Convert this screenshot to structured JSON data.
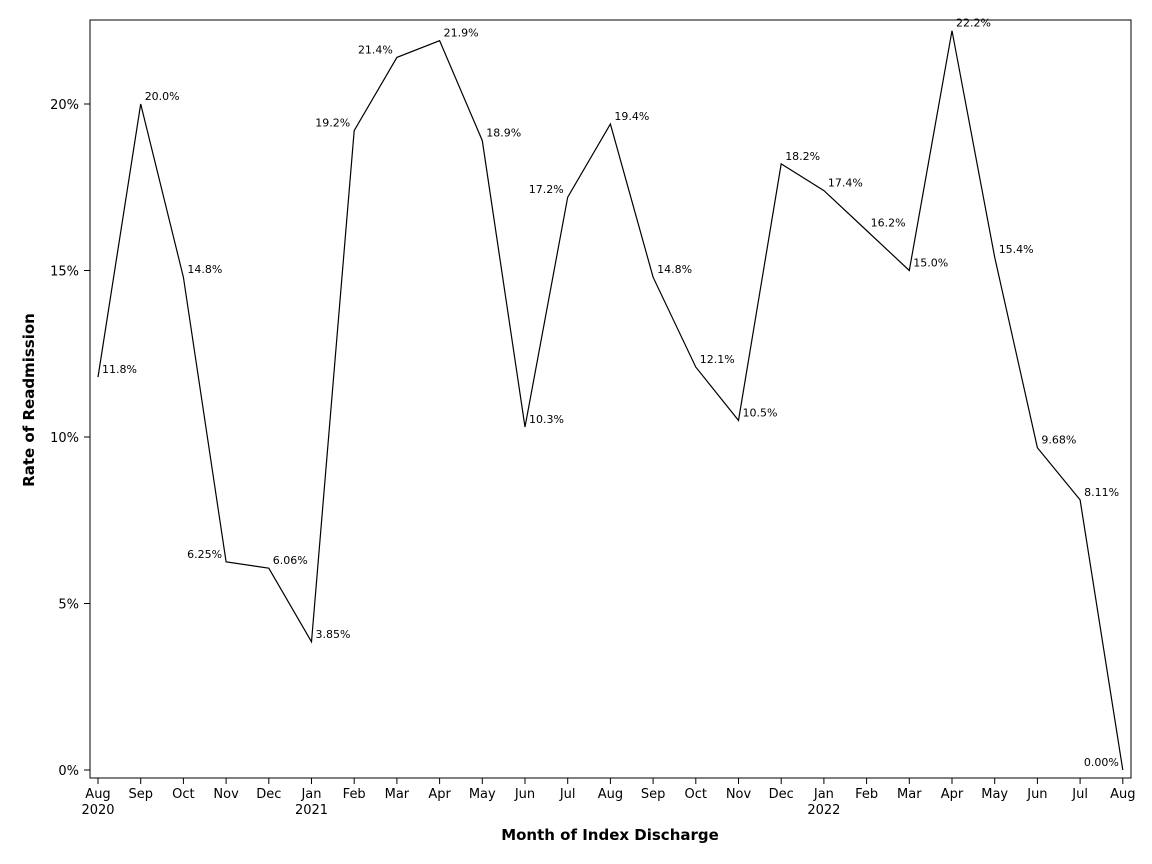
{
  "chart_data": {
    "type": "line",
    "title": "",
    "xlabel": "Month of Index Discharge",
    "ylabel": "Rate of Readmission",
    "ylim": [
      0,
      22.5
    ],
    "y_ticks": [
      {
        "value": 0,
        "label": "0%"
      },
      {
        "value": 5,
        "label": "5%"
      },
      {
        "value": 10,
        "label": "10%"
      },
      {
        "value": 15,
        "label": "15%"
      },
      {
        "value": 20,
        "label": "20%"
      }
    ],
    "grid": false,
    "legend": "none",
    "x": [
      {
        "month": "Aug",
        "year": "2020"
      },
      {
        "month": "Sep",
        "year": ""
      },
      {
        "month": "Oct",
        "year": ""
      },
      {
        "month": "Nov",
        "year": ""
      },
      {
        "month": "Dec",
        "year": ""
      },
      {
        "month": "Jan",
        "year": "2021"
      },
      {
        "month": "Feb",
        "year": ""
      },
      {
        "month": "Mar",
        "year": ""
      },
      {
        "month": "Apr",
        "year": ""
      },
      {
        "month": "May",
        "year": ""
      },
      {
        "month": "Jun",
        "year": ""
      },
      {
        "month": "Jul",
        "year": ""
      },
      {
        "month": "Aug",
        "year": ""
      },
      {
        "month": "Sep",
        "year": ""
      },
      {
        "month": "Oct",
        "year": ""
      },
      {
        "month": "Nov",
        "year": ""
      },
      {
        "month": "Dec",
        "year": ""
      },
      {
        "month": "Jan",
        "year": "2022"
      },
      {
        "month": "Feb",
        "year": ""
      },
      {
        "month": "Mar",
        "year": ""
      },
      {
        "month": "Apr",
        "year": ""
      },
      {
        "month": "May",
        "year": ""
      },
      {
        "month": "Jun",
        "year": ""
      },
      {
        "month": "Jul",
        "year": ""
      },
      {
        "month": "Aug",
        "year": ""
      }
    ],
    "series": [
      {
        "color": "#000000",
        "values": [
          11.8,
          20.0,
          14.8,
          6.25,
          6.06,
          3.85,
          19.2,
          21.4,
          21.9,
          18.9,
          10.3,
          17.2,
          19.4,
          14.8,
          12.1,
          10.5,
          18.2,
          17.4,
          16.2,
          15.0,
          22.2,
          15.4,
          9.68,
          8.11,
          0.0
        ],
        "labels": [
          "11.8%",
          "20.0%",
          "14.8%",
          "6.25%",
          "6.06%",
          "3.85%",
          "19.2%",
          "21.4%",
          "21.9%",
          "18.9%",
          "10.3%",
          "17.2%",
          "19.4%",
          "14.8%",
          "12.1%",
          "10.5%",
          "18.2%",
          "17.4%",
          "16.2%",
          "15.0%",
          "22.2%",
          "15.4%",
          "9.68%",
          "8.11%",
          "0.00%"
        ]
      }
    ]
  }
}
